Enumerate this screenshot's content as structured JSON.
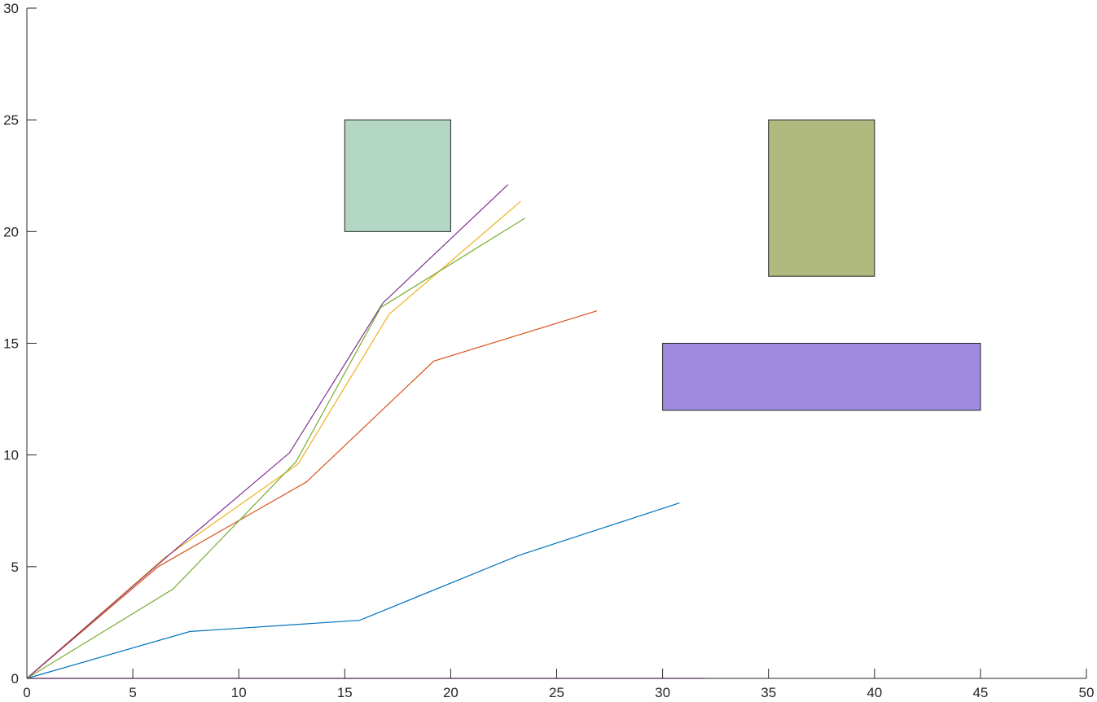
{
  "chart_data": {
    "type": "line",
    "title": "",
    "xlabel": "",
    "ylabel": "",
    "xlim": [
      0,
      50
    ],
    "ylim": [
      0,
      30
    ],
    "xticks": [
      "0",
      "5",
      "10",
      "15",
      "20",
      "25",
      "30",
      "35",
      "40",
      "45",
      "50"
    ],
    "yticks": [
      "0",
      "5",
      "10",
      "15",
      "20",
      "25",
      "30"
    ],
    "grid": false,
    "legend": "none",
    "series": [
      {
        "color": "#0072BD",
        "x": [
          0,
          7.7,
          15.7,
          23.2,
          30.8
        ],
        "y": [
          0,
          2.1,
          2.6,
          5.5,
          7.85
        ]
      },
      {
        "color": "#D95319",
        "x": [
          0,
          6.2,
          13.2,
          19.2,
          26.9
        ],
        "y": [
          0,
          5.0,
          8.8,
          14.2,
          16.45
        ]
      },
      {
        "color": "#EDB120",
        "x": [
          0,
          6.5,
          12.8,
          17.1,
          23.3
        ],
        "y": [
          0,
          5.4,
          9.6,
          16.3,
          21.35
        ]
      },
      {
        "color": "#7E2F8E",
        "x": [
          0,
          6.8,
          12.4,
          16.8,
          22.7
        ],
        "y": [
          0,
          5.6,
          10.1,
          16.8,
          22.1
        ]
      },
      {
        "color": "#77AC30",
        "x": [
          0,
          6.9,
          12.7,
          16.7,
          23.5
        ],
        "y": [
          0,
          4.0,
          9.7,
          16.6,
          20.6
        ]
      },
      {
        "color": "#FF00FF",
        "x": [
          0,
          32.0
        ],
        "y": [
          0,
          0
        ]
      }
    ],
    "rectangles": [
      {
        "x": 15,
        "y": 20,
        "width": 5,
        "height": 5,
        "color": "#B3D6C5"
      },
      {
        "x": 35,
        "y": 18,
        "width": 5,
        "height": 7,
        "color": "#B0B97E"
      },
      {
        "x": 30,
        "y": 12,
        "width": 15,
        "height": 3,
        "color": "#9F8CE0"
      }
    ]
  }
}
